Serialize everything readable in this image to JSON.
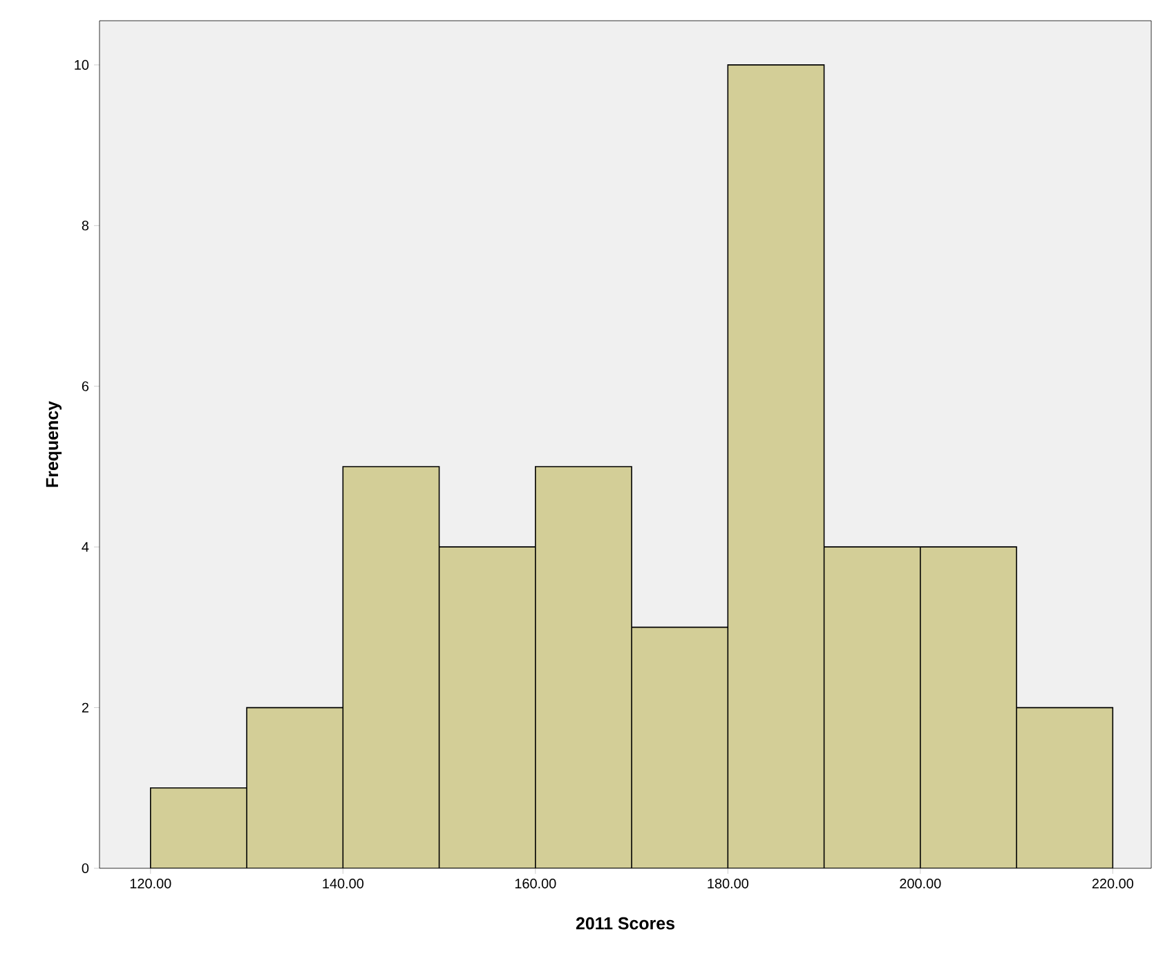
{
  "chart_data": {
    "type": "histogram",
    "xlabel": "2011 Scores",
    "ylabel": "Frequency",
    "bins": [
      120,
      130,
      140,
      150,
      160,
      170,
      180,
      190,
      200,
      210,
      220
    ],
    "values": [
      1,
      2,
      5,
      4,
      5,
      3,
      10,
      4,
      4,
      2
    ],
    "color": "#d3ce97",
    "xlim": [
      114.7,
      224
    ],
    "ylim": [
      0,
      10.55
    ],
    "xticks": [
      {
        "value": 120,
        "label": "120.00"
      },
      {
        "value": 140,
        "label": "140.00"
      },
      {
        "value": 160,
        "label": "160.00"
      },
      {
        "value": 180,
        "label": "180.00"
      },
      {
        "value": 200,
        "label": "200.00"
      },
      {
        "value": 220,
        "label": "220.00"
      }
    ],
    "yticks": [
      0,
      2,
      4,
      6,
      8,
      10
    ]
  }
}
